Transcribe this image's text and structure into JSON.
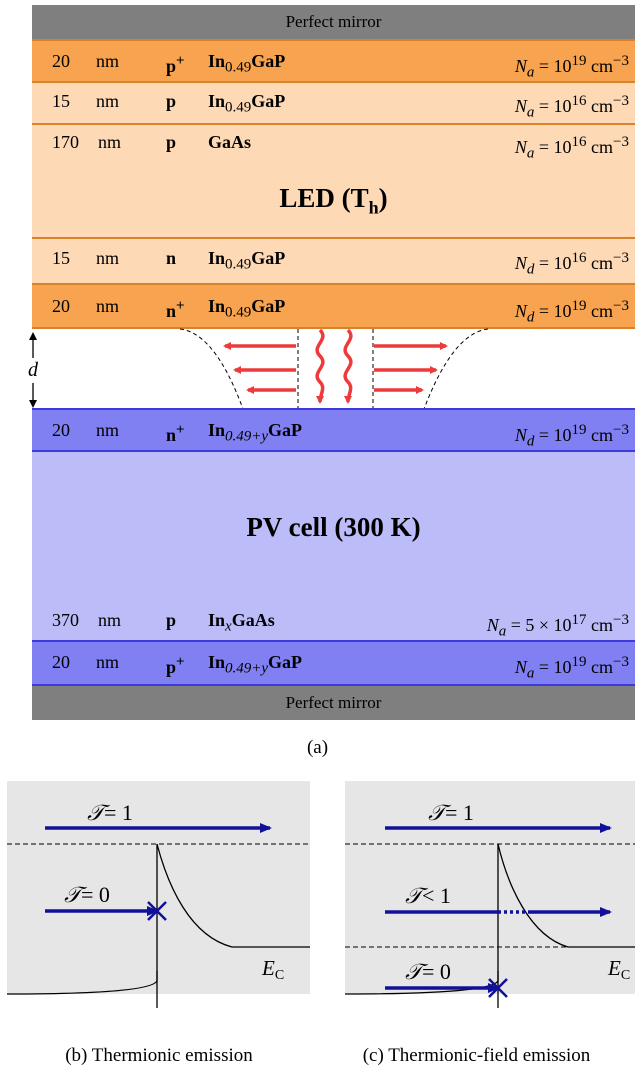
{
  "top_mirror": "Perfect mirror",
  "bottom_mirror": "Perfect mirror",
  "led_label": "LED (T",
  "led_label_sub": "h",
  "led_label_end": ")",
  "pv_label": "PV cell (300 K)",
  "gap_label": "d",
  "led_layers": [
    {
      "thickness": "20",
      "unit": "nm",
      "dop": "p",
      "dop_sup": "+",
      "mat": "In",
      "mat_sub": "0.49",
      "mat_rest": "GaP",
      "conc_sym": "N",
      "conc_sub": "a",
      "conc_eq": " = 10",
      "conc_exp": "19",
      "conc_unit": " cm",
      "conc_unit_exp": "−3"
    },
    {
      "thickness": "15",
      "unit": "nm",
      "dop": "p",
      "dop_sup": "",
      "mat": "In",
      "mat_sub": "0.49",
      "mat_rest": "GaP",
      "conc_sym": "N",
      "conc_sub": "a",
      "conc_eq": " = 10",
      "conc_exp": "16",
      "conc_unit": " cm",
      "conc_unit_exp": "−3"
    },
    {
      "thickness": "170",
      "unit": "nm",
      "dop": "p",
      "dop_sup": "",
      "mat": "GaAs",
      "mat_sub": "",
      "mat_rest": "",
      "conc_sym": "N",
      "conc_sub": "a",
      "conc_eq": " = 10",
      "conc_exp": "16",
      "conc_unit": " cm",
      "conc_unit_exp": "−3"
    },
    {
      "thickness": "15",
      "unit": "nm",
      "dop": "n",
      "dop_sup": "",
      "mat": "In",
      "mat_sub": "0.49",
      "mat_rest": "GaP",
      "conc_sym": "N",
      "conc_sub": "d",
      "conc_eq": " = 10",
      "conc_exp": "16",
      "conc_unit": " cm",
      "conc_unit_exp": "−3"
    },
    {
      "thickness": "20",
      "unit": "nm",
      "dop": "n",
      "dop_sup": "+",
      "mat": "In",
      "mat_sub": "0.49",
      "mat_rest": "GaP",
      "conc_sym": "N",
      "conc_sub": "d",
      "conc_eq": " = 10",
      "conc_exp": "19",
      "conc_unit": " cm",
      "conc_unit_exp": "−3"
    }
  ],
  "pv_layers": [
    {
      "thickness": "20",
      "unit": "nm",
      "dop": "n",
      "dop_sup": "+",
      "mat": "In",
      "mat_sub": "0.49+y",
      "mat_rest": "GaP",
      "conc_sym": "N",
      "conc_sub": "d",
      "conc_eq": " = 10",
      "conc_exp": "19",
      "conc_unit": " cm",
      "conc_unit_exp": "−3"
    },
    {
      "thickness": "370",
      "unit": "nm",
      "dop": "p",
      "dop_sup": "",
      "mat": "In",
      "mat_sub": "x",
      "mat_rest": "GaAs",
      "conc_sym": "N",
      "conc_sub": "a",
      "conc_eq": " = 5 × 10",
      "conc_exp": "17",
      "conc_unit": " cm",
      "conc_unit_exp": "−3"
    },
    {
      "thickness": "20",
      "unit": "nm",
      "dop": "p",
      "dop_sup": "+",
      "mat": "In",
      "mat_sub": "0.49+y",
      "mat_rest": "GaP",
      "conc_sym": "N",
      "conc_sub": "a",
      "conc_eq": " = 10",
      "conc_exp": "19",
      "conc_unit": " cm",
      "conc_unit_exp": "−3"
    }
  ],
  "captions": {
    "a": "(a)",
    "b": "(b) Thermionic emission",
    "c": "(c) Thermionic-field emission"
  },
  "panel_b": {
    "t1": "= 1",
    "t0": "= 0",
    "ec": "E",
    "ec_sub": "C"
  },
  "panel_c": {
    "t1": "= 1",
    "tlt": "< 1",
    "t0": "= 0",
    "ec": "E",
    "ec_sub": "C"
  },
  "colors": {
    "mirror": "#7f7f7f",
    "dark_orange": "#f7a34f",
    "light_orange": "#fdd9b5",
    "orange_border": "#d9822b",
    "dark_blue": "#8080f2",
    "light_blue": "#bcbcf9",
    "blue_border": "#3b3be0",
    "arrow_red": "#ee3a3a",
    "arrow_blue": "#10109a",
    "panel_bg": "#e6e6e6"
  }
}
